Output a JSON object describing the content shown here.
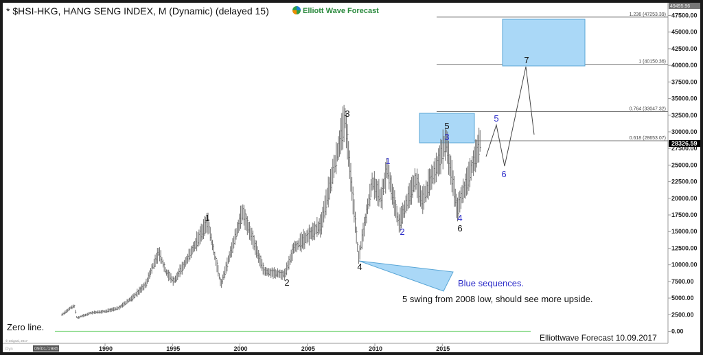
{
  "header": {
    "title": "* $HSI-HKG, HANG SENG INDEX, M (Dynamic) (delayed 15)",
    "brand": "Elliott Wave Forecast"
  },
  "footer": {
    "signature": "Elliottwave Forecast  10.09.2017",
    "copyright": "© eSignal, 2017",
    "dyn_label": "Dyn",
    "cursor_date": "09/01/1985"
  },
  "chart_data": {
    "type": "bar",
    "title": "* $HSI-HKG, HANG SENG INDEX, M (Dynamic) (delayed 15)",
    "xlabel": "",
    "ylabel": "",
    "x_ticks": [
      "1990",
      "1995",
      "2000",
      "2005",
      "2010",
      "2015"
    ],
    "y_ticks": [
      "47500.00",
      "45000.00",
      "42500.00",
      "40000.00",
      "37500.00",
      "35000.00",
      "32500.00",
      "30000.00",
      "27500.00",
      "25000.00",
      "22500.00",
      "20000.00",
      "17500.00",
      "15000.00",
      "12500.00",
      "10000.00",
      "7500.00",
      "5000.00",
      "2500.00",
      "0.00"
    ],
    "ylim": [
      0,
      49495.96
    ],
    "top_value_label": "49495.96",
    "last_price_label": "28326.59",
    "last_price": 28326.59,
    "grid": false,
    "series": [
      {
        "x": [
          1986.8,
          1987.7,
          1987.9,
          1989.0,
          1990.0,
          1991.0,
          1992.0,
          1993.0,
          1994.0,
          1994.5,
          1995.1,
          1996.0,
          1997.6,
          1998.6,
          2000.2,
          2001.8,
          2003.3,
          2004.0,
          2006.0,
          2007.8,
          2008.8,
          2009.8,
          2010.5,
          2010.9,
          2011.8,
          2013.0,
          2013.5,
          2015.3,
          2016.1,
          2017.8
        ],
        "y": [
          2500,
          3900,
          2000,
          2800,
          3000,
          3500,
          5000,
          7000,
          12000,
          9000,
          7500,
          10500,
          16500,
          7000,
          18000,
          9000,
          8500,
          12500,
          16000,
          32000,
          11000,
          22500,
          20000,
          24500,
          16200,
          23000,
          19500,
          28500,
          18300,
          28300
        ]
      }
    ],
    "fib_levels": [
      {
        "label": "1.236 (47253.39)",
        "value": 47253.39
      },
      {
        "label": "1 (40150.36)",
        "value": 40150.36
      },
      {
        "label": "0.764 (33047.32)",
        "value": 33047.32
      },
      {
        "label": "0.618 (28653.07)",
        "value": 28653.07
      }
    ],
    "wave_labels": [
      {
        "text": "1",
        "color": "#111111"
      },
      {
        "text": "2",
        "color": "#111111"
      },
      {
        "text": "3",
        "color": "#111111"
      },
      {
        "text": "4",
        "color": "#111111"
      },
      {
        "text": "1",
        "color": "#2b2bc8"
      },
      {
        "text": "2",
        "color": "#2b2bc8"
      },
      {
        "text": "5",
        "color": "#111111"
      },
      {
        "text": "3",
        "color": "#2b2bc8"
      },
      {
        "text": "4",
        "color": "#2b2bc8"
      },
      {
        "text": "6",
        "color": "#111111"
      },
      {
        "text": "5",
        "color": "#2b2bc8"
      },
      {
        "text": "6",
        "color": "#2b2bc8"
      },
      {
        "text": "7",
        "color": "#111111"
      }
    ],
    "annotations": {
      "blue_sequences": "Blue sequences.",
      "swing_note": "5 swing from 2008 low, should see more upside.",
      "zero_line": "Zero line."
    },
    "colors": {
      "bars": "#6e6e6e",
      "box": "#aad8f7",
      "box_border": "#5aa6d6",
      "blue_label": "#2b2bc8",
      "zero_line": "#7fd67f"
    }
  }
}
